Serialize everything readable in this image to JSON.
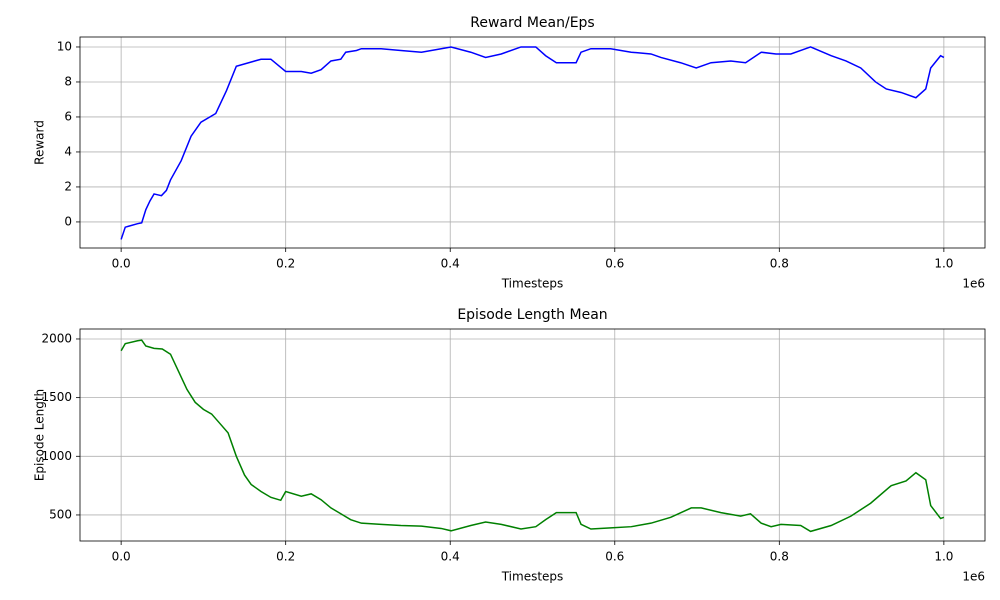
{
  "chart_data": [
    {
      "type": "line",
      "title": "Reward Mean/Eps",
      "x_label": "Timesteps",
      "y_label": "Reward",
      "x_offset_label": "1e6",
      "x": [
        0,
        0.005,
        0.02,
        0.025,
        0.03,
        0.035,
        0.04,
        0.049,
        0.055,
        0.06,
        0.073,
        0.085,
        0.097,
        0.115,
        0.128,
        0.14,
        0.17,
        0.182,
        0.2,
        0.219,
        0.231,
        0.243,
        0.255,
        0.267,
        0.273,
        0.286,
        0.292,
        0.316,
        0.34,
        0.365,
        0.389,
        0.401,
        0.425,
        0.443,
        0.462,
        0.486,
        0.504,
        0.516,
        0.529,
        0.553,
        0.559,
        0.571,
        0.595,
        0.62,
        0.644,
        0.656,
        0.68,
        0.699,
        0.717,
        0.741,
        0.759,
        0.778,
        0.796,
        0.814,
        0.832,
        0.838,
        0.863,
        0.881,
        0.899,
        0.917,
        0.93,
        0.948,
        0.966,
        0.978,
        0.984,
        0.996,
        1.0
      ],
      "series": [
        {
          "name": "Reward",
          "color": "#0000ff",
          "values": [
            -1,
            -0.3,
            -0.1,
            -0.05,
            0.7,
            1.2,
            1.6,
            1.5,
            1.8,
            2.4,
            3.5,
            4.9,
            5.7,
            6.2,
            7.5,
            8.9,
            9.3,
            9.3,
            8.6,
            8.6,
            8.5,
            8.7,
            9.2,
            9.3,
            9.7,
            9.8,
            9.9,
            9.9,
            9.8,
            9.7,
            9.9,
            10,
            9.7,
            9.4,
            9.6,
            10,
            10,
            9.5,
            9.1,
            9.1,
            9.7,
            9.9,
            9.9,
            9.7,
            9.6,
            9.4,
            9.1,
            8.8,
            9.1,
            9.2,
            9.1,
            9.7,
            9.6,
            9.6,
            9.9,
            10,
            9.5,
            9.2,
            8.8,
            8.0,
            7.6,
            7.4,
            7.1,
            7.6,
            8.8,
            9.5,
            9.4
          ]
        }
      ],
      "xlim": [
        -0.05,
        1.05
      ],
      "xticks": [
        {
          "value": 0,
          "label": "0.0"
        },
        0.2,
        0.4,
        0.6,
        0.8,
        {
          "value": 1,
          "label": "1.0"
        }
      ],
      "ylim": [
        -1.49,
        10.57
      ],
      "yticks": [
        0,
        2,
        4,
        6,
        8,
        10
      ],
      "grid": true
    },
    {
      "type": "line",
      "title": "Episode Length Mean",
      "x_label": "Timesteps",
      "y_label": "Episode Length",
      "x_offset_label": "1e6",
      "x": [
        0,
        0.005,
        0.02,
        0.025,
        0.03,
        0.04,
        0.05,
        0.06,
        0.07,
        0.08,
        0.09,
        0.1,
        0.11,
        0.12,
        0.13,
        0.14,
        0.15,
        0.158,
        0.17,
        0.182,
        0.194,
        0.2,
        0.219,
        0.231,
        0.243,
        0.255,
        0.267,
        0.279,
        0.292,
        0.316,
        0.34,
        0.365,
        0.389,
        0.401,
        0.425,
        0.443,
        0.462,
        0.486,
        0.504,
        0.516,
        0.529,
        0.553,
        0.559,
        0.571,
        0.595,
        0.62,
        0.644,
        0.668,
        0.693,
        0.705,
        0.729,
        0.753,
        0.765,
        0.778,
        0.79,
        0.802,
        0.826,
        0.838,
        0.863,
        0.887,
        0.911,
        0.936,
        0.954,
        0.966,
        0.978,
        0.984,
        0.996,
        1.0
      ],
      "series": [
        {
          "name": "Episode Length",
          "color": "#008000",
          "values": [
            1900,
            1960,
            1985,
            1990,
            1940,
            1920,
            1915,
            1870,
            1720,
            1570,
            1460,
            1400,
            1360,
            1280,
            1200,
            1000,
            840,
            760,
            700,
            650,
            625,
            700,
            660,
            680,
            630,
            560,
            510,
            460,
            430,
            420,
            410,
            405,
            385,
            365,
            410,
            440,
            420,
            380,
            400,
            460,
            520,
            520,
            420,
            380,
            390,
            400,
            430,
            480,
            560,
            560,
            520,
            490,
            510,
            430,
            400,
            420,
            410,
            360,
            410,
            490,
            600,
            750,
            790,
            860,
            800,
            580,
            470,
            480
          ]
        }
      ],
      "xlim": [
        -0.05,
        1.05
      ],
      "xticks": [
        {
          "value": 0,
          "label": "0.0"
        },
        0.2,
        0.4,
        0.6,
        0.8,
        {
          "value": 1,
          "label": "1.0"
        }
      ],
      "ylim": [
        278,
        2085
      ],
      "yticks": [
        500,
        1000,
        1500,
        2000
      ],
      "grid": true
    }
  ]
}
